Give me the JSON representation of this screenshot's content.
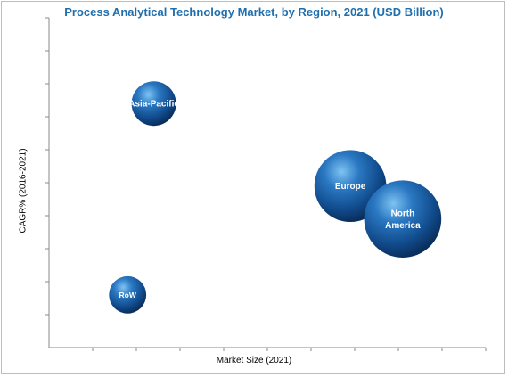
{
  "chart_data": {
    "type": "bubble",
    "title": "Process Analytical Technology Market, by Region, 2021 (USD Billion)",
    "xlabel": "Market Size (2021)",
    "ylabel": "CAGR% (2016-2021)",
    "grid": false,
    "legend": "none",
    "axis_tick_labels": "none",
    "bubble_color": "#1a5aa0",
    "points": [
      {
        "label": "Asia-Pacific",
        "x": 2.4,
        "y": 7.4,
        "size": 1.0
      },
      {
        "label": "Europe",
        "x": 6.9,
        "y": 4.9,
        "size": 2.6
      },
      {
        "label": "North America",
        "x": 8.1,
        "y": 3.9,
        "size": 3.0
      },
      {
        "label": "RoW",
        "x": 1.8,
        "y": 1.6,
        "size": 0.7
      }
    ]
  }
}
